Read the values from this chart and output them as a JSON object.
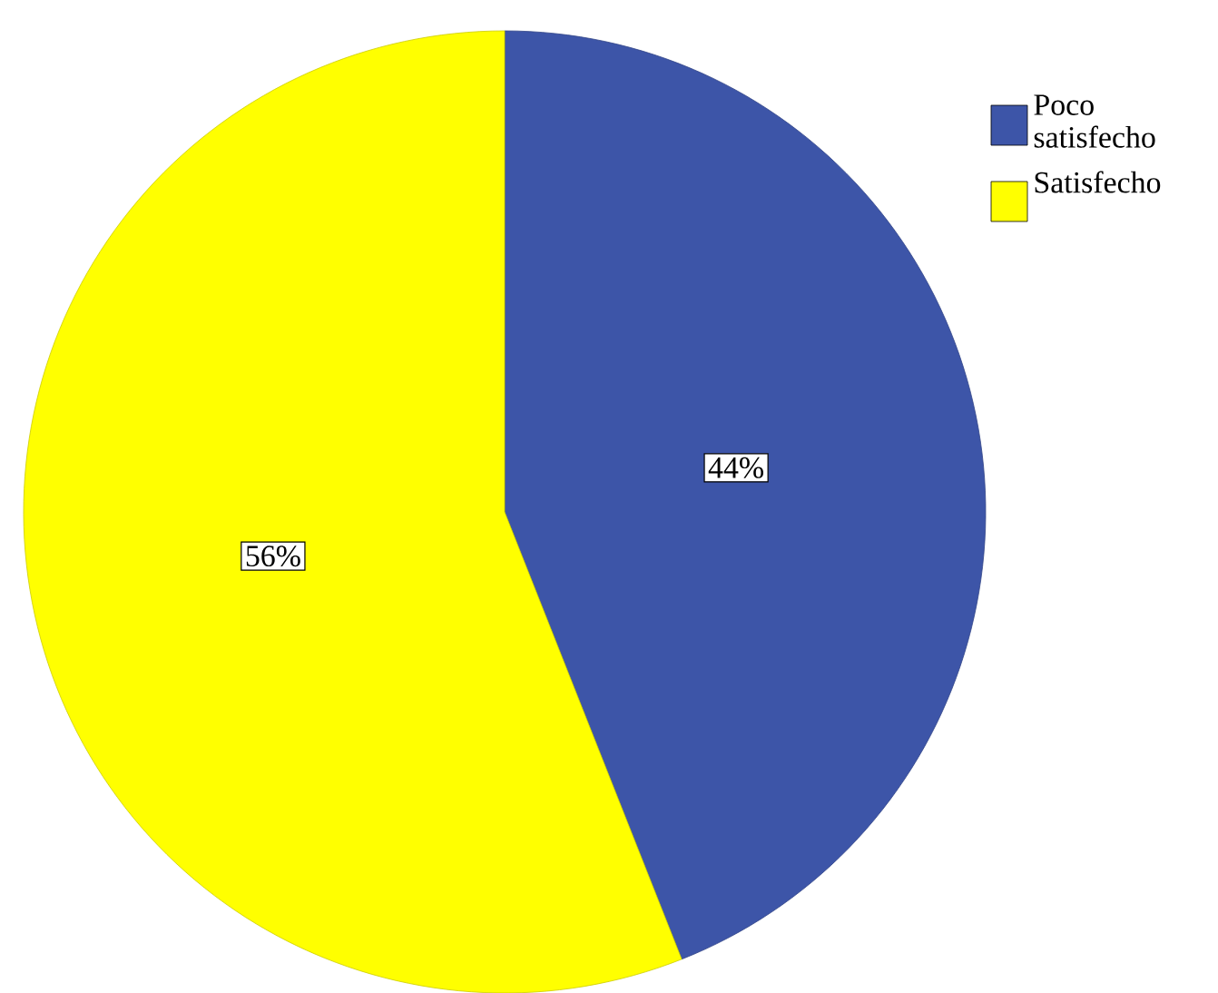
{
  "chart_data": {
    "type": "pie",
    "categories": [
      "Poco satisfecho",
      "Satisfecho"
    ],
    "values": [
      44,
      56
    ],
    "colors": [
      "#3d55a8",
      "#ffff00"
    ],
    "value_labels": [
      "44%",
      "56%"
    ],
    "legend": "top right"
  }
}
